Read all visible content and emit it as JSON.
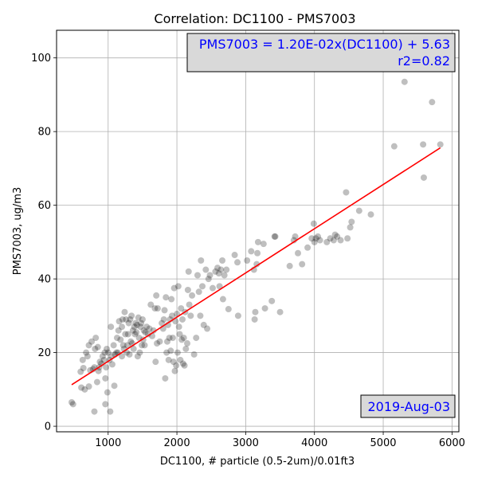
{
  "chart_data": {
    "type": "scatter",
    "title": "Correlation: DC1100 - PMS7003",
    "xlabel": "DC1100, # particle (0.5-2um)/0.01ft3",
    "ylabel": "PMS7003, ug/m3",
    "xlim": [
      250,
      6100
    ],
    "ylim": [
      -1.5,
      107.5
    ],
    "xticks": [
      1000,
      2000,
      3000,
      4000,
      5000,
      6000
    ],
    "yticks": [
      0,
      20,
      40,
      60,
      80,
      100
    ],
    "grid": true,
    "annotations": {
      "equation": "PMS7003 = 1.20E-02x(DC1100) + 5.63",
      "r2": "r2=0.82",
      "date": "2019-Aug-03"
    },
    "colors": {
      "points": "#000000",
      "fit_line": "#ff0000",
      "annotation_text": "#0000ff",
      "annotation_box": "#d9d9d9"
    },
    "fit": {
      "slope": 0.012,
      "intercept": 5.63,
      "x_range": [
        470,
        5830
      ]
    },
    "points": [
      [
        470,
        6.5
      ],
      [
        490,
        6.0
      ],
      [
        600,
        14.8
      ],
      [
        610,
        10.5
      ],
      [
        630,
        18.0
      ],
      [
        640,
        15.8
      ],
      [
        660,
        10.0
      ],
      [
        680,
        20.0
      ],
      [
        700,
        19.0
      ],
      [
        720,
        10.8
      ],
      [
        720,
        22.0
      ],
      [
        740,
        15.2
      ],
      [
        760,
        23.0
      ],
      [
        780,
        15.5
      ],
      [
        800,
        16.0
      ],
      [
        800,
        4.0
      ],
      [
        810,
        21.0
      ],
      [
        820,
        24.0
      ],
      [
        840,
        12.0
      ],
      [
        850,
        21.5
      ],
      [
        860,
        15.0
      ],
      [
        870,
        16.0
      ],
      [
        880,
        17.5
      ],
      [
        900,
        17.0
      ],
      [
        920,
        19.0
      ],
      [
        940,
        18.0
      ],
      [
        950,
        20.0
      ],
      [
        960,
        13.0
      ],
      [
        960,
        6.0
      ],
      [
        970,
        16.0
      ],
      [
        980,
        21.0
      ],
      [
        990,
        9.2
      ],
      [
        1000,
        20.0
      ],
      [
        1020,
        18.0
      ],
      [
        1030,
        4.0
      ],
      [
        1040,
        27.0
      ],
      [
        1050,
        19.0
      ],
      [
        1060,
        16.8
      ],
      [
        1080,
        22.0
      ],
      [
        1090,
        11.0
      ],
      [
        1100,
        19.5
      ],
      [
        1120,
        20.0
      ],
      [
        1130,
        24.0
      ],
      [
        1140,
        20.0
      ],
      [
        1150,
        26.0
      ],
      [
        1160,
        28.5
      ],
      [
        1180,
        23.5
      ],
      [
        1200,
        19.0
      ],
      [
        1200,
        27.0
      ],
      [
        1210,
        29.0
      ],
      [
        1220,
        22.0
      ],
      [
        1230,
        21.0
      ],
      [
        1240,
        31.0
      ],
      [
        1250,
        25.0
      ],
      [
        1260,
        29.0
      ],
      [
        1270,
        20.0
      ],
      [
        1280,
        22.0
      ],
      [
        1290,
        25.0
      ],
      [
        1300,
        28.0
      ],
      [
        1310,
        19.5
      ],
      [
        1320,
        29.0
      ],
      [
        1330,
        23.0
      ],
      [
        1340,
        30.0
      ],
      [
        1350,
        22.5
      ],
      [
        1360,
        26.0
      ],
      [
        1370,
        21.0
      ],
      [
        1380,
        27.0
      ],
      [
        1390,
        25.0
      ],
      [
        1400,
        28.0
      ],
      [
        1410,
        25.5
      ],
      [
        1420,
        27.5
      ],
      [
        1430,
        19.0
      ],
      [
        1440,
        29.5
      ],
      [
        1450,
        24.0
      ],
      [
        1460,
        20.0
      ],
      [
        1470,
        27.0
      ],
      [
        1480,
        28.0
      ],
      [
        1490,
        22.0
      ],
      [
        1500,
        29.0
      ],
      [
        1510,
        23.5
      ],
      [
        1520,
        26.0
      ],
      [
        1530,
        22.0
      ],
      [
        1540,
        25.5
      ],
      [
        1560,
        27.0
      ],
      [
        1580,
        25.0
      ],
      [
        1600,
        26.5
      ],
      [
        1620,
        33.0
      ],
      [
        1640,
        24.5
      ],
      [
        1660,
        26.0
      ],
      [
        1680,
        32.0
      ],
      [
        1690,
        17.5
      ],
      [
        1700,
        35.5
      ],
      [
        1710,
        22.5
      ],
      [
        1720,
        32.0
      ],
      [
        1750,
        23.0
      ],
      [
        1780,
        28.0
      ],
      [
        1800,
        26.5
      ],
      [
        1810,
        29.0
      ],
      [
        1820,
        31.5
      ],
      [
        1830,
        13.0
      ],
      [
        1840,
        35.0
      ],
      [
        1850,
        20.0
      ],
      [
        1860,
        23.0
      ],
      [
        1870,
        27.5
      ],
      [
        1880,
        18.0
      ],
      [
        1890,
        24.0
      ],
      [
        1900,
        29.0
      ],
      [
        1910,
        20.5
      ],
      [
        1920,
        34.5
      ],
      [
        1930,
        30.0
      ],
      [
        1940,
        24.0
      ],
      [
        1950,
        17.5
      ],
      [
        1960,
        37.5
      ],
      [
        1970,
        15.0
      ],
      [
        1980,
        28.5
      ],
      [
        1990,
        16.5
      ],
      [
        2000,
        30.5
      ],
      [
        2010,
        20.0
      ],
      [
        2020,
        38.0
      ],
      [
        2030,
        27.0
      ],
      [
        2040,
        25.0
      ],
      [
        2050,
        18.0
      ],
      [
        2060,
        32.0
      ],
      [
        2070,
        23.5
      ],
      [
        2080,
        29.0
      ],
      [
        2090,
        17.0
      ],
      [
        2100,
        24.0
      ],
      [
        2110,
        16.5
      ],
      [
        2120,
        31.0
      ],
      [
        2130,
        21.0
      ],
      [
        2150,
        22.5
      ],
      [
        2160,
        37.0
      ],
      [
        2170,
        42.0
      ],
      [
        2180,
        33.0
      ],
      [
        2200,
        30.0
      ],
      [
        2220,
        35.5
      ],
      [
        2250,
        19.5
      ],
      [
        2280,
        24.0
      ],
      [
        2300,
        41.0
      ],
      [
        2320,
        36.5
      ],
      [
        2340,
        30.0
      ],
      [
        2350,
        45.0
      ],
      [
        2370,
        38.0
      ],
      [
        2390,
        27.5
      ],
      [
        2420,
        42.5
      ],
      [
        2440,
        26.5
      ],
      [
        2460,
        40.0
      ],
      [
        2480,
        41.0
      ],
      [
        2520,
        37.5
      ],
      [
        2560,
        42.0
      ],
      [
        2590,
        43.0
      ],
      [
        2610,
        41.5
      ],
      [
        2620,
        38.0
      ],
      [
        2640,
        42.5
      ],
      [
        2660,
        45.0
      ],
      [
        2670,
        34.5
      ],
      [
        2690,
        41.0
      ],
      [
        2720,
        42.5
      ],
      [
        2750,
        31.8
      ],
      [
        2840,
        46.5
      ],
      [
        2880,
        44.5
      ],
      [
        2890,
        30.0
      ],
      [
        3020,
        45.0
      ],
      [
        3080,
        47.5
      ],
      [
        3120,
        42.5
      ],
      [
        3130,
        29.0
      ],
      [
        3140,
        31.0
      ],
      [
        3160,
        44.0
      ],
      [
        3170,
        47.0
      ],
      [
        3180,
        50.0
      ],
      [
        3260,
        49.5
      ],
      [
        3280,
        32.0
      ],
      [
        3380,
        34.0
      ],
      [
        3420,
        51.5
      ],
      [
        3430,
        51.5
      ],
      [
        3500,
        31.0
      ],
      [
        3640,
        43.5
      ],
      [
        3700,
        50.5
      ],
      [
        3720,
        51.5
      ],
      [
        3760,
        47.0
      ],
      [
        3820,
        44.0
      ],
      [
        3900,
        48.5
      ],
      [
        3960,
        51.0
      ],
      [
        3990,
        55.0
      ],
      [
        4000,
        50.0
      ],
      [
        4020,
        51.0
      ],
      [
        4050,
        51.5
      ],
      [
        4080,
        50.5
      ],
      [
        4180,
        50.0
      ],
      [
        4230,
        51.0
      ],
      [
        4280,
        50.5
      ],
      [
        4300,
        52.0
      ],
      [
        4330,
        51.5
      ],
      [
        4380,
        50.5
      ],
      [
        4460,
        63.5
      ],
      [
        4480,
        51.0
      ],
      [
        4520,
        54.0
      ],
      [
        4540,
        55.5
      ],
      [
        4650,
        58.5
      ],
      [
        4820,
        57.5
      ],
      [
        5160,
        76.0
      ],
      [
        5310,
        93.5
      ],
      [
        5580,
        76.5
      ],
      [
        5590,
        67.5
      ],
      [
        5710,
        88.0
      ],
      [
        5830,
        76.5
      ]
    ]
  }
}
